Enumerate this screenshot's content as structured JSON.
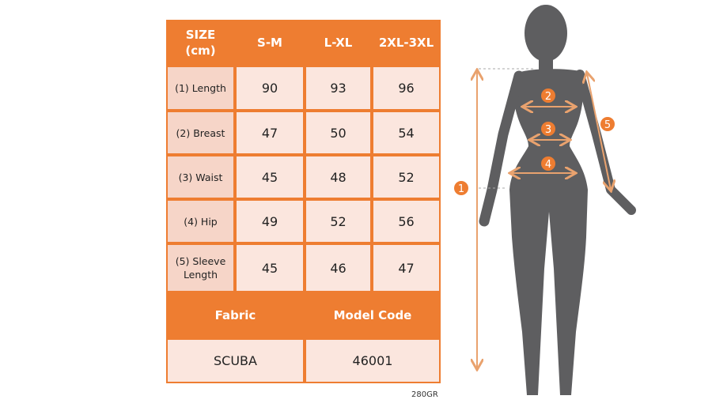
{
  "table": {
    "header": [
      "SIZE\n(cm)",
      "S-M",
      "L-XL",
      "2XL-3XL"
    ],
    "header_line1": "SIZE",
    "header_line2": "(cm)",
    "rows": [
      {
        "label": "(1) Length",
        "values": [
          "90",
          "93",
          "96"
        ]
      },
      {
        "label": "(2) Breast",
        "values": [
          "47",
          "50",
          "54"
        ]
      },
      {
        "label": "(3) Waist",
        "values": [
          "45",
          "48",
          "52"
        ]
      },
      {
        "label": "(4) Hip",
        "values": [
          "49",
          "52",
          "56"
        ]
      },
      {
        "label_line1": "(5) Sleeve",
        "label_line2": "Length",
        "values": [
          "45",
          "46",
          "47"
        ]
      }
    ],
    "fabric_label": "Fabric",
    "model_code_label": "Model Code",
    "fabric_value": "SCUBA",
    "model_code_value": "46001"
  },
  "note": "280GR",
  "figure": {
    "markers": [
      "1",
      "2",
      "3",
      "4",
      "5"
    ]
  },
  "colors": {
    "accent": "#EE7D31",
    "cell": "#FBE6DE",
    "label_cell": "#F6D5C8",
    "silhouette": "#5E5E60"
  }
}
